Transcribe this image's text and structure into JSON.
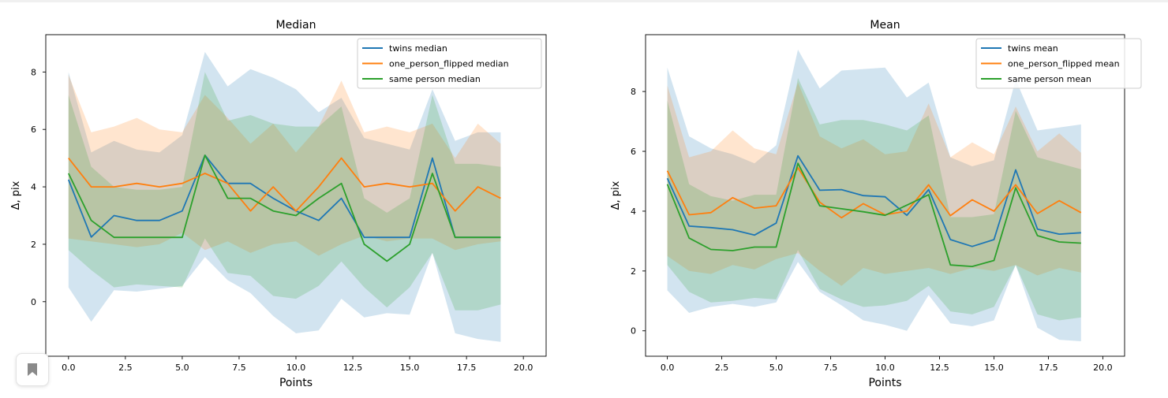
{
  "chart_data": [
    {
      "type": "line",
      "title": "Median",
      "xlabel": "Points",
      "ylabel": "Δ, pix",
      "xlim": [
        -1,
        21
      ],
      "ylim": [
        -1.9,
        9.3
      ],
      "xticks": [
        "0.0",
        "2.5",
        "5.0",
        "7.5",
        "10.0",
        "12.5",
        "15.0",
        "17.5",
        "20.0"
      ],
      "yticks": [
        "0",
        "2",
        "4",
        "6",
        "8"
      ],
      "legend_position": "top-right",
      "x": [
        0,
        1,
        2,
        3,
        4,
        5,
        6,
        7,
        8,
        9,
        10,
        11,
        12,
        13,
        14,
        15,
        16,
        17,
        18,
        19
      ],
      "series": [
        {
          "name": "twins median",
          "color": "#1f77b4",
          "values": [
            4.25,
            2.25,
            3.0,
            2.83,
            2.83,
            3.16,
            5.1,
            4.12,
            4.12,
            3.6,
            3.16,
            2.83,
            3.6,
            2.24,
            2.24,
            2.24,
            5.0,
            2.24,
            2.24,
            2.24
          ],
          "band_lower": [
            0.5,
            -0.7,
            0.4,
            0.35,
            0.45,
            0.55,
            1.55,
            0.75,
            0.3,
            -0.5,
            -1.1,
            -1.0,
            0.1,
            -0.55,
            -0.4,
            -0.45,
            1.7,
            -1.1,
            -1.3,
            -1.4
          ],
          "band_upper": [
            8.0,
            5.2,
            5.6,
            5.3,
            5.2,
            5.8,
            8.7,
            7.5,
            8.1,
            7.8,
            7.4,
            6.6,
            7.1,
            5.7,
            5.5,
            5.3,
            7.4,
            5.6,
            5.9,
            5.9
          ]
        },
        {
          "name": "one_person_flipped median",
          "color": "#ff7f0e",
          "values": [
            5.0,
            4.0,
            4.0,
            4.12,
            4.0,
            4.12,
            4.47,
            4.12,
            3.16,
            4.0,
            3.16,
            4.0,
            5.0,
            4.0,
            4.12,
            4.0,
            4.12,
            3.16,
            4.0,
            3.6
          ],
          "band_lower": [
            2.2,
            2.1,
            2.0,
            1.9,
            2.0,
            2.4,
            1.8,
            2.1,
            1.7,
            2.0,
            2.1,
            1.6,
            2.0,
            2.3,
            2.1,
            2.2,
            2.2,
            1.8,
            2.0,
            2.1
          ],
          "band_upper": [
            7.9,
            5.9,
            6.1,
            6.4,
            6.0,
            5.9,
            7.2,
            6.4,
            5.5,
            6.2,
            5.2,
            6.1,
            7.7,
            5.9,
            6.1,
            5.9,
            6.2,
            5.0,
            6.2,
            5.5
          ]
        },
        {
          "name": "same person median",
          "color": "#2ca02c",
          "values": [
            4.47,
            2.83,
            2.24,
            2.24,
            2.24,
            2.24,
            5.1,
            3.6,
            3.6,
            3.16,
            3.0,
            3.6,
            4.12,
            2.0,
            1.41,
            2.0,
            4.47,
            2.24,
            2.24,
            2.24
          ],
          "band_lower": [
            1.8,
            1.1,
            0.5,
            0.6,
            0.55,
            0.5,
            2.2,
            1.0,
            0.9,
            0.2,
            0.1,
            0.55,
            1.4,
            0.5,
            -0.2,
            0.5,
            1.7,
            -0.3,
            -0.3,
            -0.1
          ],
          "band_upper": [
            7.2,
            4.7,
            4.0,
            3.9,
            3.9,
            4.0,
            8.0,
            6.3,
            6.5,
            6.2,
            6.1,
            6.1,
            6.8,
            3.6,
            3.1,
            3.6,
            7.2,
            4.8,
            4.8,
            4.7
          ]
        }
      ]
    },
    {
      "type": "line",
      "title": "Mean",
      "xlabel": "Points",
      "ylabel": "Δ, pix",
      "xlim": [
        -1,
        21
      ],
      "ylim": [
        -0.85,
        9.9
      ],
      "xticks": [
        "0.0",
        "2.5",
        "5.0",
        "7.5",
        "10.0",
        "12.5",
        "15.0",
        "17.5",
        "20.0"
      ],
      "yticks": [
        "0",
        "2",
        "4",
        "6",
        "8"
      ],
      "legend_position": "top-right",
      "x": [
        0,
        1,
        2,
        3,
        4,
        5,
        6,
        7,
        8,
        9,
        10,
        11,
        12,
        13,
        14,
        15,
        16,
        17,
        18,
        19
      ],
      "series": [
        {
          "name": "twins mean",
          "color": "#1f77b4",
          "values": [
            5.1,
            3.5,
            3.45,
            3.38,
            3.2,
            3.6,
            5.85,
            4.7,
            4.72,
            4.52,
            4.48,
            3.86,
            4.72,
            3.05,
            2.82,
            3.05,
            5.38,
            3.4,
            3.23,
            3.28
          ],
          "band_lower": [
            1.35,
            0.6,
            0.8,
            0.9,
            0.8,
            0.95,
            2.3,
            1.3,
            0.85,
            0.35,
            0.2,
            0.0,
            1.2,
            0.25,
            0.15,
            0.35,
            2.2,
            0.1,
            -0.3,
            -0.35
          ],
          "band_upper": [
            8.8,
            6.5,
            6.1,
            5.9,
            5.6,
            6.2,
            9.4,
            8.1,
            8.7,
            8.75,
            8.8,
            7.8,
            8.3,
            5.8,
            5.5,
            5.7,
            8.4,
            6.7,
            6.8,
            6.9
          ]
        },
        {
          "name": "one_person_flipped mean",
          "color": "#ff7f0e",
          "values": [
            5.35,
            3.88,
            3.95,
            4.45,
            4.1,
            4.18,
            5.45,
            4.3,
            3.78,
            4.25,
            3.88,
            4.0,
            4.88,
            3.85,
            4.38,
            4.0,
            4.88,
            3.92,
            4.35,
            3.95
          ],
          "band_lower": [
            2.5,
            2.0,
            1.9,
            2.2,
            2.05,
            2.4,
            2.6,
            2.0,
            1.5,
            2.1,
            1.9,
            2.0,
            2.1,
            1.9,
            2.1,
            2.0,
            2.2,
            1.85,
            2.1,
            1.95
          ],
          "band_upper": [
            8.2,
            5.8,
            6.0,
            6.7,
            6.1,
            5.9,
            8.3,
            6.5,
            6.1,
            6.4,
            5.9,
            6.0,
            7.6,
            5.8,
            6.3,
            5.9,
            7.5,
            6.0,
            6.6,
            5.95
          ]
        },
        {
          "name": "same person mean",
          "color": "#2ca02c",
          "values": [
            4.9,
            3.1,
            2.72,
            2.68,
            2.8,
            2.8,
            5.6,
            4.18,
            4.08,
            3.98,
            3.86,
            4.2,
            4.55,
            2.2,
            2.15,
            2.35,
            4.78,
            3.18,
            2.97,
            2.93
          ],
          "band_lower": [
            2.2,
            1.3,
            0.95,
            1.0,
            1.1,
            1.05,
            2.7,
            1.4,
            1.05,
            0.8,
            0.85,
            1.0,
            1.5,
            0.65,
            0.55,
            0.8,
            2.2,
            0.55,
            0.35,
            0.45
          ],
          "band_upper": [
            7.7,
            4.9,
            4.5,
            4.35,
            4.55,
            4.55,
            8.45,
            6.9,
            7.05,
            7.05,
            6.9,
            6.7,
            7.2,
            3.8,
            3.8,
            3.9,
            7.35,
            5.8,
            5.6,
            5.4
          ]
        }
      ]
    }
  ]
}
